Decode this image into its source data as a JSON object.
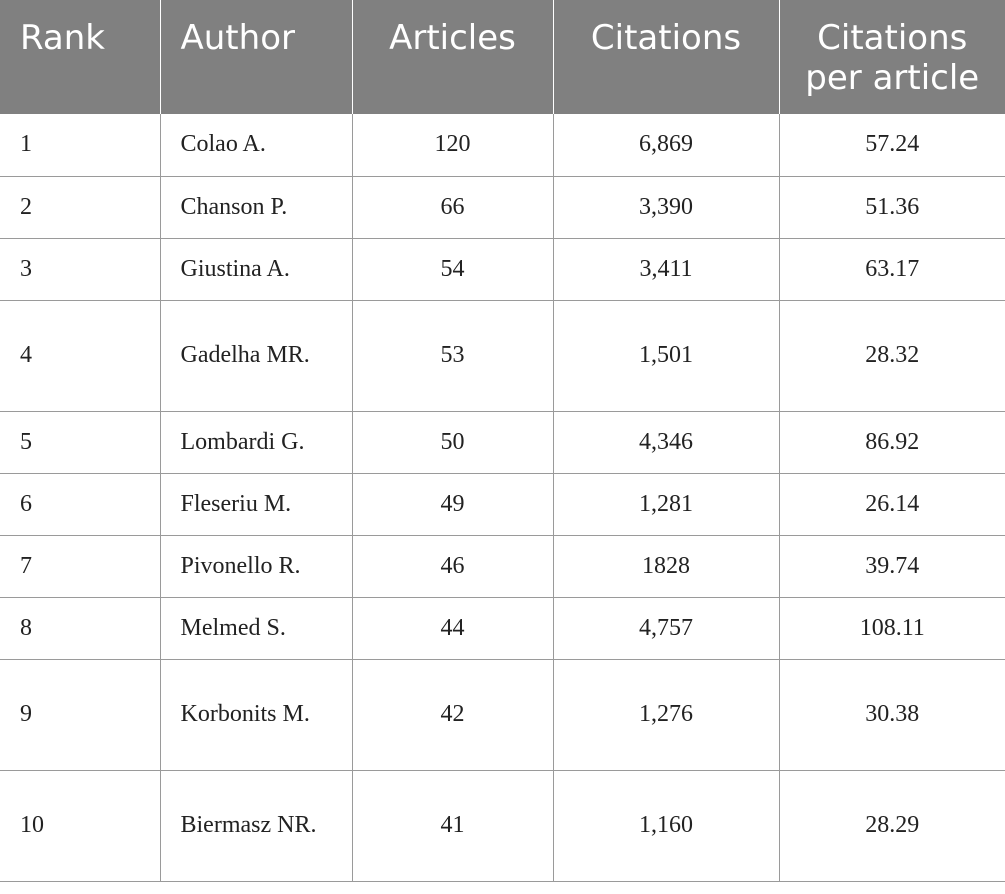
{
  "table": {
    "headers": {
      "rank": "Rank",
      "author": "Author",
      "articles": "Articles",
      "citations": "Citations",
      "citations_per_article": "Citations per article"
    },
    "rows": [
      {
        "rank": "1",
        "author": "Colao A.",
        "articles": "120",
        "citations": "6,869",
        "cpa": "57.24"
      },
      {
        "rank": "2",
        "author": "Chanson P.",
        "articles": "66",
        "citations": "3,390",
        "cpa": "51.36"
      },
      {
        "rank": "3",
        "author": "Giustina A.",
        "articles": "54",
        "citations": "3,411",
        "cpa": "63.17"
      },
      {
        "rank": "4",
        "author": "Gadelha MR.",
        "articles": "53",
        "citations": "1,501",
        "cpa": "28.32"
      },
      {
        "rank": "5",
        "author": "Lombardi G.",
        "articles": "50",
        "citations": "4,346",
        "cpa": "86.92"
      },
      {
        "rank": "6",
        "author": "Fleseriu M.",
        "articles": "49",
        "citations": "1,281",
        "cpa": "26.14"
      },
      {
        "rank": "7",
        "author": "Pivonello R.",
        "articles": "46",
        "citations": "1828",
        "cpa": "39.74"
      },
      {
        "rank": "8",
        "author": "Melmed S.",
        "articles": "44",
        "citations": "4,757",
        "cpa": "108.11"
      },
      {
        "rank": "9",
        "author": "Korbonits M.",
        "articles": "42",
        "citations": "1,276",
        "cpa": "30.38"
      },
      {
        "rank": "10",
        "author": "Biermasz NR.",
        "articles": "41",
        "citations": "1,160",
        "cpa": "28.29"
      }
    ]
  }
}
